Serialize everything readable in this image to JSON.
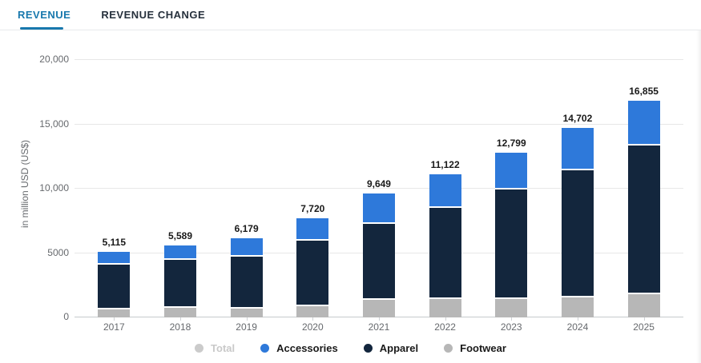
{
  "tabs": [
    {
      "label": "REVENUE",
      "active": true
    },
    {
      "label": "REVENUE CHANGE",
      "active": false
    }
  ],
  "chart_data": {
    "type": "bar",
    "stacked": true,
    "categories": [
      "2017",
      "2018",
      "2019",
      "2020",
      "2021",
      "2022",
      "2023",
      "2024",
      "2025"
    ],
    "series": [
      {
        "name": "Footwear",
        "color": "#b7b7b7",
        "values": [
          650,
          720,
          700,
          875,
          1360,
          1400,
          1400,
          1560,
          1830
        ]
      },
      {
        "name": "Apparel",
        "color": "#13263d",
        "values": [
          3440,
          3770,
          4030,
          5110,
          5890,
          7080,
          8540,
          9900,
          11500
        ]
      },
      {
        "name": "Accessories",
        "color": "#2e79da",
        "values": [
          1025,
          1099,
          1449,
          1735,
          2399,
          2642,
          2859,
          3242,
          3525
        ]
      }
    ],
    "totals": [
      5115,
      5589,
      6179,
      7720,
      9649,
      11122,
      12799,
      14702,
      16855
    ],
    "total_labels": [
      "5,115",
      "5,589",
      "6,179",
      "7,720",
      "9,649",
      "11,122",
      "12,799",
      "14,702",
      "16,855"
    ],
    "xlabel": "",
    "ylabel": "in million USD (US$)",
    "ylim": [
      0,
      20000
    ],
    "yticks": [
      {
        "value": 0,
        "label": "0"
      },
      {
        "value": 5000,
        "label": "5000"
      },
      {
        "value": 10000,
        "label": "10,000"
      },
      {
        "value": 15000,
        "label": "15,000"
      },
      {
        "value": 20000,
        "label": "20,000"
      }
    ],
    "grid": true,
    "legend_position": "bottom",
    "legend": [
      {
        "label": "Total",
        "color": "#cbcbcb",
        "disabled": true
      },
      {
        "label": "Accessories",
        "color": "#2e79da",
        "disabled": false
      },
      {
        "label": "Apparel",
        "color": "#13263d",
        "disabled": false
      },
      {
        "label": "Footwear",
        "color": "#b7b7b7",
        "disabled": false
      }
    ]
  },
  "colors": {
    "tab_active": "#1878ad",
    "tab_inactive": "#26303c",
    "grid": "#e7e7e7",
    "axis": "#c6cacd",
    "value_label": "#191919",
    "muted_text": "#66696d"
  }
}
